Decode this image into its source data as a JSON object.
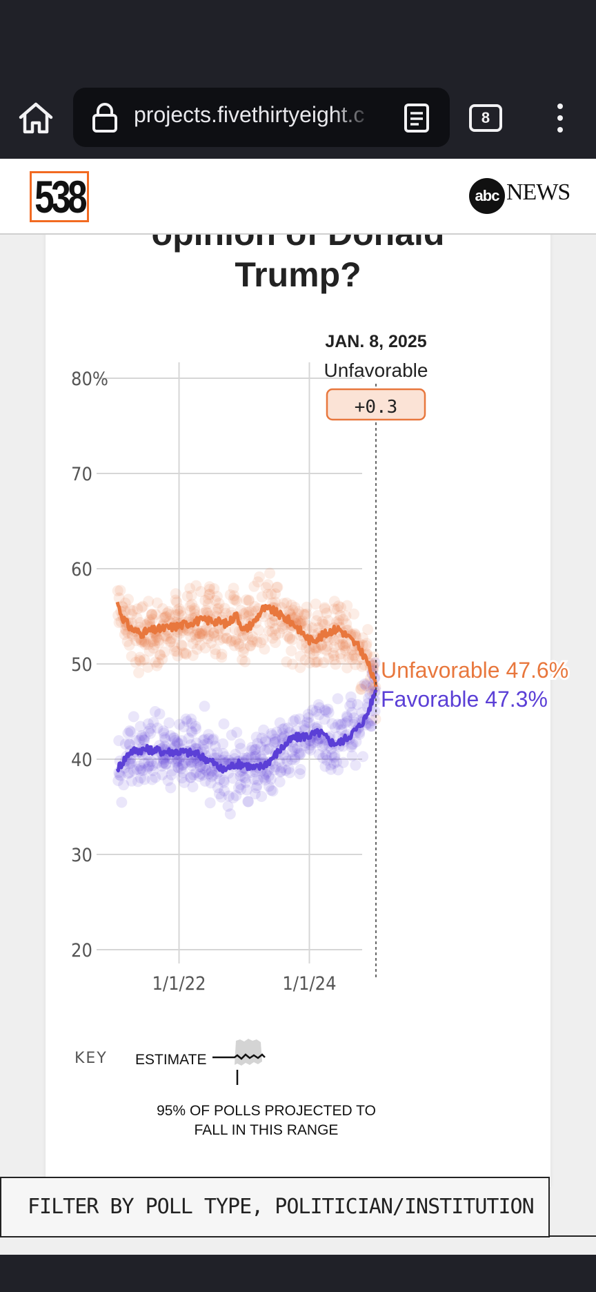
{
  "browser": {
    "url": "projects.fivethirtyeight.c",
    "tab_count": "8"
  },
  "header": {
    "site_logo": "538",
    "partner_logo_mark": "abc",
    "partner_logo_text": "NEWS"
  },
  "chart_title_line1": "opinion of Donald",
  "chart_title_line2": "Trump?",
  "chart_data": {
    "type": "line",
    "ylim": [
      20,
      80
    ],
    "y_ticks": [
      {
        "value": 80,
        "label": "80%"
      },
      {
        "value": 70,
        "label": "70"
      },
      {
        "value": 60,
        "label": "60"
      },
      {
        "value": 50,
        "label": "50"
      },
      {
        "value": 40,
        "label": "40"
      },
      {
        "value": 30,
        "label": "30"
      },
      {
        "value": 20,
        "label": "20"
      }
    ],
    "x_ticks": [
      {
        "date": "2022-01-01",
        "label": "1/1/22"
      },
      {
        "date": "2024-01-01",
        "label": "1/1/24"
      }
    ],
    "x_range": [
      "2021-01-20",
      "2025-01-08"
    ],
    "hover": {
      "date_label": "JAN. 8, 2025",
      "leader_label": "Unfavorable",
      "margin_label": "+0.3"
    },
    "series": [
      {
        "name": "Unfavorable",
        "color": "#e8773d",
        "end_label": "Unfavorable 47.6%",
        "points": [
          [
            "2021-01-20",
            56.5
          ],
          [
            "2021-02-15",
            55.0
          ],
          [
            "2021-04-01",
            53.8
          ],
          [
            "2021-06-01",
            53.2
          ],
          [
            "2021-08-01",
            53.5
          ],
          [
            "2021-10-01",
            53.7
          ],
          [
            "2022-01-01",
            54.0
          ],
          [
            "2022-04-01",
            54.5
          ],
          [
            "2022-07-01",
            54.6
          ],
          [
            "2022-10-01",
            54.2
          ],
          [
            "2022-11-15",
            55.2
          ],
          [
            "2023-01-01",
            53.5
          ],
          [
            "2023-03-01",
            54.5
          ],
          [
            "2023-04-15",
            55.8
          ],
          [
            "2023-06-01",
            55.7
          ],
          [
            "2023-08-01",
            55.0
          ],
          [
            "2023-10-01",
            54.3
          ],
          [
            "2024-01-01",
            52.5
          ],
          [
            "2024-03-01",
            52.8
          ],
          [
            "2024-05-01",
            53.5
          ],
          [
            "2024-06-15",
            53.7
          ],
          [
            "2024-08-01",
            52.9
          ],
          [
            "2024-10-01",
            51.8
          ],
          [
            "2024-11-15",
            50.5
          ],
          [
            "2024-12-15",
            49.0
          ],
          [
            "2025-01-08",
            47.6
          ]
        ]
      },
      {
        "name": "Favorable",
        "color": "#5b3fd6",
        "end_label": "Favorable 47.3%",
        "points": [
          [
            "2021-01-20",
            39.0
          ],
          [
            "2021-02-15",
            39.6
          ],
          [
            "2021-04-01",
            40.8
          ],
          [
            "2021-06-01",
            41.0
          ],
          [
            "2021-08-01",
            41.0
          ],
          [
            "2021-10-01",
            40.8
          ],
          [
            "2022-01-01",
            40.8
          ],
          [
            "2022-04-01",
            40.6
          ],
          [
            "2022-07-01",
            39.8
          ],
          [
            "2022-09-01",
            38.8
          ],
          [
            "2022-11-15",
            39.5
          ],
          [
            "2023-01-01",
            39.5
          ],
          [
            "2023-03-01",
            39.0
          ],
          [
            "2023-04-15",
            39.3
          ],
          [
            "2023-06-01",
            40.0
          ],
          [
            "2023-08-01",
            41.2
          ],
          [
            "2023-10-01",
            42.2
          ],
          [
            "2024-01-01",
            42.5
          ],
          [
            "2024-03-01",
            42.8
          ],
          [
            "2024-05-01",
            41.8
          ],
          [
            "2024-06-15",
            41.7
          ],
          [
            "2024-08-01",
            42.3
          ],
          [
            "2024-10-01",
            43.3
          ],
          [
            "2024-11-15",
            44.5
          ],
          [
            "2024-12-15",
            46.0
          ],
          [
            "2025-01-08",
            47.3
          ]
        ]
      }
    ]
  },
  "key": {
    "title": "KEY",
    "estimate_label": "ESTIMATE",
    "range_label_line1": "95% OF POLLS PROJECTED TO",
    "range_label_line2": "FALL IN THIS RANGE"
  },
  "filter": {
    "label": "FILTER BY POLL TYPE, POLITICIAN/INSTITUTION"
  }
}
